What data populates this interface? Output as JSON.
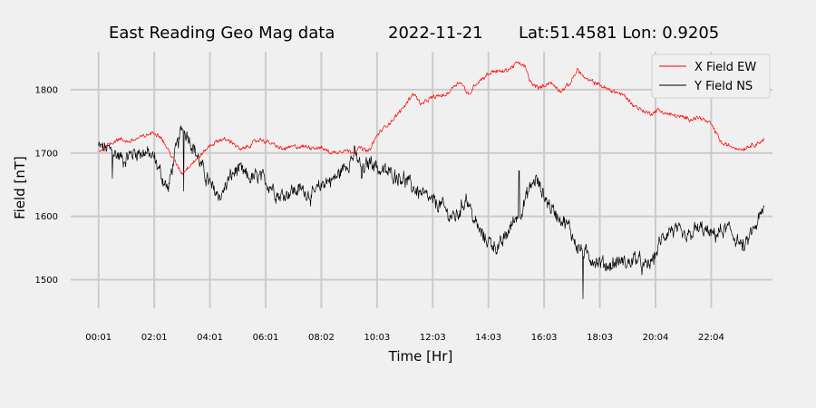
{
  "chart_data": {
    "type": "line",
    "title": {
      "main": "East Reading Geo Mag data",
      "date": "2022-11-21",
      "location": "Lat:51.4581  Lon: 0.9205"
    },
    "xlabel": "Time  [Hr]",
    "ylabel": "Field  [nT]",
    "x_ticks": [
      "00:01",
      "02:01",
      "04:01",
      "06:01",
      "08:02",
      "10:03",
      "12:03",
      "14:03",
      "16:03",
      "18:03",
      "20:04",
      "22:04"
    ],
    "y_ticks": [
      1500,
      1600,
      1700,
      1800
    ],
    "xlim_hours": [
      -1.0,
      24.2
    ],
    "ylim": [
      1455,
      1860
    ],
    "grid": true,
    "legend_position": "upper right",
    "legend_box": true,
    "series": [
      {
        "name": "X Field EW",
        "color": "#ff0000",
        "linewidth": 0.7,
        "noise": 2.5,
        "spikes": [],
        "points": [
          [
            0.0,
            1702
          ],
          [
            0.3,
            1712
          ],
          [
            0.7,
            1722
          ],
          [
            1.1,
            1718
          ],
          [
            1.6,
            1726
          ],
          [
            2.0,
            1733
          ],
          [
            2.2,
            1728
          ],
          [
            2.5,
            1705
          ],
          [
            2.8,
            1682
          ],
          [
            3.0,
            1668
          ],
          [
            3.3,
            1682
          ],
          [
            3.7,
            1698
          ],
          [
            4.0,
            1712
          ],
          [
            4.4,
            1722
          ],
          [
            4.8,
            1718
          ],
          [
            5.1,
            1704
          ],
          [
            5.4,
            1712
          ],
          [
            5.8,
            1722
          ],
          [
            6.2,
            1715
          ],
          [
            6.6,
            1706
          ],
          [
            7.0,
            1710
          ],
          [
            7.5,
            1710
          ],
          [
            8.0,
            1708
          ],
          [
            8.4,
            1700
          ],
          [
            8.8,
            1705
          ],
          [
            9.1,
            1702
          ],
          [
            9.4,
            1708
          ],
          [
            9.7,
            1702
          ],
          [
            10.0,
            1728
          ],
          [
            10.3,
            1742
          ],
          [
            10.6,
            1754
          ],
          [
            11.0,
            1775
          ],
          [
            11.3,
            1795
          ],
          [
            11.6,
            1776
          ],
          [
            11.9,
            1786
          ],
          [
            12.2,
            1790
          ],
          [
            12.5,
            1792
          ],
          [
            12.8,
            1808
          ],
          [
            13.0,
            1813
          ],
          [
            13.3,
            1790
          ],
          [
            13.5,
            1808
          ],
          [
            13.9,
            1822
          ],
          [
            14.2,
            1830
          ],
          [
            14.5,
            1828
          ],
          [
            14.8,
            1834
          ],
          [
            15.0,
            1842
          ],
          [
            15.3,
            1838
          ],
          [
            15.5,
            1812
          ],
          [
            15.8,
            1802
          ],
          [
            16.2,
            1812
          ],
          [
            16.6,
            1798
          ],
          [
            16.9,
            1808
          ],
          [
            17.2,
            1832
          ],
          [
            17.5,
            1816
          ],
          [
            17.9,
            1810
          ],
          [
            18.3,
            1800
          ],
          [
            18.6,
            1796
          ],
          [
            18.9,
            1790
          ],
          [
            19.2,
            1776
          ],
          [
            19.5,
            1768
          ],
          [
            19.8,
            1762
          ],
          [
            20.1,
            1768
          ],
          [
            20.4,
            1762
          ],
          [
            20.8,
            1758
          ],
          [
            21.2,
            1754
          ],
          [
            21.6,
            1756
          ],
          [
            22.0,
            1745
          ],
          [
            22.2,
            1730
          ],
          [
            22.4,
            1714
          ],
          [
            22.8,
            1710
          ],
          [
            23.1,
            1706
          ],
          [
            23.4,
            1712
          ],
          [
            23.7,
            1716
          ],
          [
            23.9,
            1722
          ]
        ]
      },
      {
        "name": "Y Field NS",
        "color": "#000000",
        "linewidth": 0.7,
        "noise": 9,
        "spikes": [
          [
            0.5,
            1660
          ],
          [
            3.05,
            1640
          ],
          [
            9.45,
            1660
          ],
          [
            17.4,
            1470
          ],
          [
            15.1,
            1672
          ]
        ],
        "points": [
          [
            0.0,
            1710
          ],
          [
            0.4,
            1705
          ],
          [
            0.9,
            1690
          ],
          [
            1.3,
            1702
          ],
          [
            1.7,
            1700
          ],
          [
            2.0,
            1692
          ],
          [
            2.3,
            1660
          ],
          [
            2.5,
            1642
          ],
          [
            2.7,
            1690
          ],
          [
            3.0,
            1740
          ],
          [
            3.2,
            1730
          ],
          [
            3.5,
            1700
          ],
          [
            3.8,
            1668
          ],
          [
            4.1,
            1642
          ],
          [
            4.4,
            1632
          ],
          [
            4.7,
            1660
          ],
          [
            5.0,
            1675
          ],
          [
            5.4,
            1660
          ],
          [
            5.8,
            1662
          ],
          [
            6.2,
            1648
          ],
          [
            6.5,
            1632
          ],
          [
            6.9,
            1640
          ],
          [
            7.3,
            1642
          ],
          [
            7.7,
            1632
          ],
          [
            8.1,
            1655
          ],
          [
            8.5,
            1660
          ],
          [
            8.9,
            1682
          ],
          [
            9.2,
            1698
          ],
          [
            9.5,
            1672
          ],
          [
            9.8,
            1690
          ],
          [
            10.1,
            1672
          ],
          [
            10.5,
            1668
          ],
          [
            10.9,
            1662
          ],
          [
            11.3,
            1645
          ],
          [
            11.7,
            1632
          ],
          [
            12.0,
            1622
          ],
          [
            12.3,
            1618
          ],
          [
            12.6,
            1602
          ],
          [
            12.8,
            1598
          ],
          [
            13.0,
            1610
          ],
          [
            13.2,
            1632
          ],
          [
            13.5,
            1592
          ],
          [
            13.8,
            1568
          ],
          [
            14.1,
            1558
          ],
          [
            14.4,
            1550
          ],
          [
            14.7,
            1575
          ],
          [
            15.0,
            1600
          ],
          [
            15.2,
            1612
          ],
          [
            15.5,
            1645
          ],
          [
            15.7,
            1660
          ],
          [
            16.0,
            1632
          ],
          [
            16.3,
            1610
          ],
          [
            16.6,
            1598
          ],
          [
            16.9,
            1582
          ],
          [
            17.2,
            1552
          ],
          [
            17.5,
            1540
          ],
          [
            17.8,
            1532
          ],
          [
            18.1,
            1525
          ],
          [
            18.4,
            1522
          ],
          [
            18.7,
            1530
          ],
          [
            19.0,
            1525
          ],
          [
            19.3,
            1535
          ],
          [
            19.6,
            1518
          ],
          [
            19.9,
            1530
          ],
          [
            20.2,
            1562
          ],
          [
            20.5,
            1580
          ],
          [
            20.8,
            1575
          ],
          [
            21.1,
            1562
          ],
          [
            21.4,
            1578
          ],
          [
            21.7,
            1580
          ],
          [
            22.0,
            1570
          ],
          [
            22.3,
            1575
          ],
          [
            22.6,
            1580
          ],
          [
            22.9,
            1565
          ],
          [
            23.2,
            1548
          ],
          [
            23.4,
            1570
          ],
          [
            23.6,
            1585
          ],
          [
            23.8,
            1602
          ],
          [
            23.9,
            1612
          ]
        ]
      }
    ]
  }
}
